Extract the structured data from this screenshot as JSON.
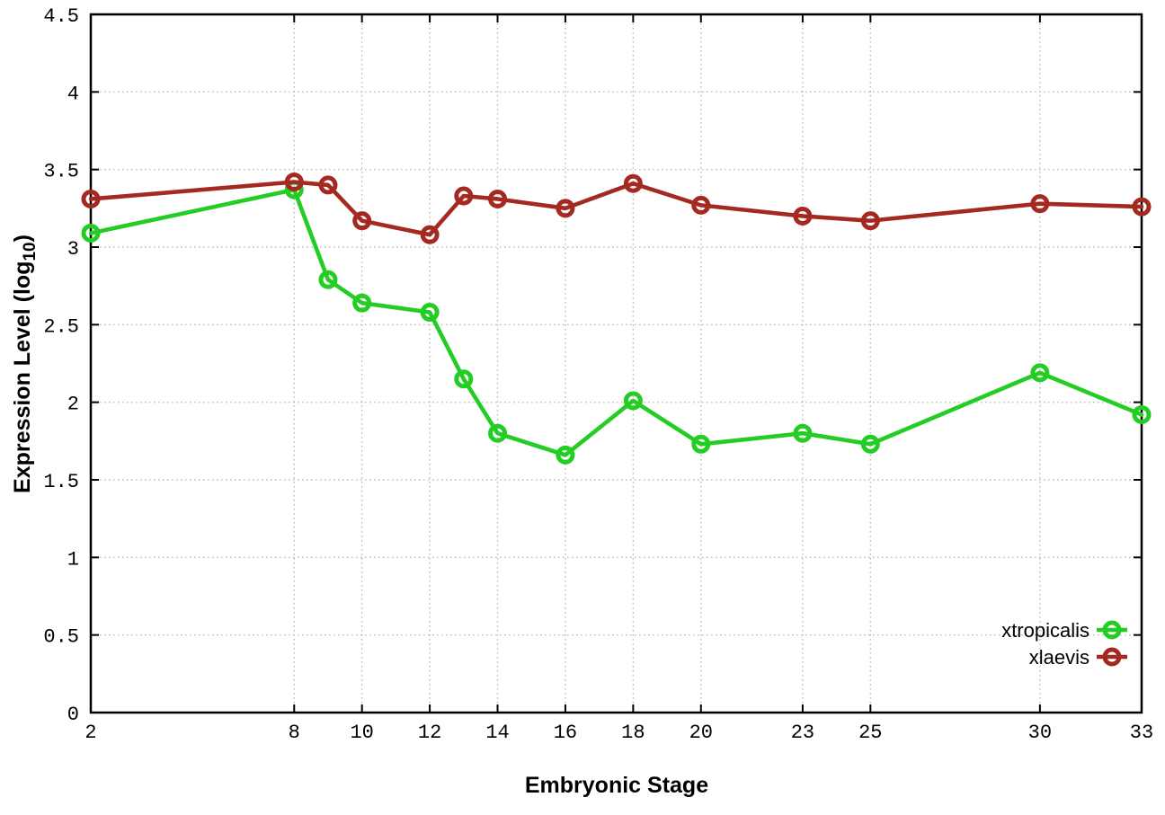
{
  "chart_data": {
    "type": "line",
    "title": "",
    "xlabel": "Embryonic Stage",
    "ylabel": "Expression Level (log10)",
    "ylabel_parts": {
      "pre": "Expression Level (log",
      "sub": "10",
      "post": ")"
    },
    "xlim": [
      2,
      33
    ],
    "ylim": [
      0,
      4.5
    ],
    "grid": true,
    "grid_style": "dotted",
    "legend_position": "bottom-right-inside",
    "x": [
      2,
      8,
      9,
      10,
      12,
      13,
      14,
      16,
      18,
      20,
      23,
      25,
      30,
      33
    ],
    "xtick_values": [
      2,
      8,
      10,
      12,
      14,
      16,
      18,
      20,
      23,
      25,
      30,
      33
    ],
    "xtick_labels": [
      "2",
      "8",
      "10",
      "12",
      "14",
      "16",
      "18",
      "20",
      "23",
      "25",
      "30",
      "33"
    ],
    "ytick_values": [
      0,
      0.5,
      1,
      1.5,
      2,
      2.5,
      3,
      3.5,
      4,
      4.5
    ],
    "ytick_labels": [
      "0",
      "0.5",
      "1",
      "1.5",
      "2",
      "2.5",
      "3",
      "3.5",
      "4",
      "4.5"
    ],
    "series": [
      {
        "name": "xtropicalis",
        "color": "#23cd23",
        "marker": "open-circle",
        "values": [
          3.09,
          3.37,
          2.79,
          2.64,
          2.58,
          2.15,
          1.8,
          1.66,
          2.01,
          1.73,
          1.8,
          1.73,
          2.19,
          1.92
        ]
      },
      {
        "name": "xlaevis",
        "color": "#a42a21",
        "marker": "open-circle",
        "values": [
          3.31,
          3.42,
          3.4,
          3.17,
          3.08,
          3.33,
          3.31,
          3.25,
          3.41,
          3.27,
          3.2,
          3.17,
          3.28,
          3.26
        ]
      }
    ],
    "colors": {
      "background": "#ffffff",
      "axis": "#000000",
      "grid": "#bdbdbd"
    }
  }
}
